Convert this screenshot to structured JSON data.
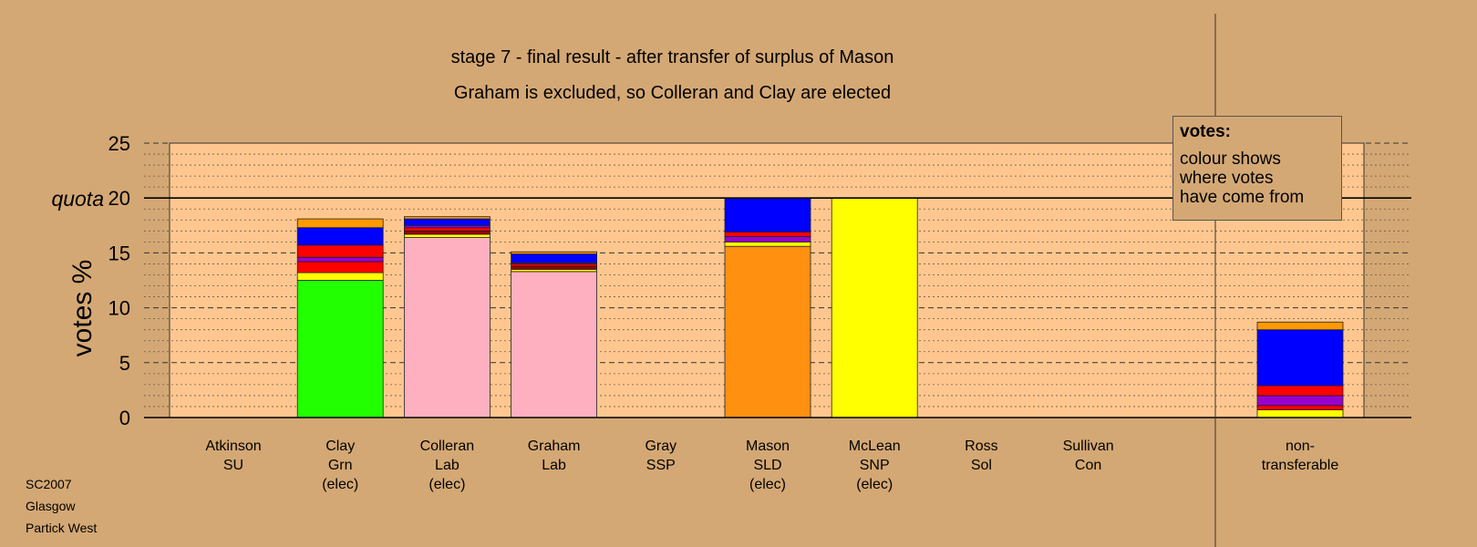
{
  "chart_data": {
    "type": "bar",
    "stacked": true,
    "title": "stage 7 - final result - after transfer of surplus of Mason",
    "subtitle": "Graham is excluded, so Colleran and Clay are elected",
    "ylabel": "votes %",
    "ylim": [
      0,
      25
    ],
    "yticks": [
      0,
      5,
      10,
      15,
      20,
      25
    ],
    "quota_label": "quota",
    "quota": 20,
    "grid": true,
    "categories": [
      {
        "lines": [
          "Atkinson",
          "SU"
        ],
        "segments": []
      },
      {
        "lines": [
          "Clay",
          "Grn",
          "(elec)"
        ],
        "segments": [
          {
            "color": "#22ff00",
            "value": 12.5
          },
          {
            "color": "#ffff00",
            "value": 0.7
          },
          {
            "color": "#ff0000",
            "value": 1.0
          },
          {
            "color": "#9900cc",
            "value": 0.4
          },
          {
            "color": "#ff0000",
            "value": 1.1
          },
          {
            "color": "#0000ff",
            "value": 1.6
          },
          {
            "color": "#ff9900",
            "value": 0.8
          }
        ]
      },
      {
        "lines": [
          "Colleran",
          "Lab",
          "(elec)"
        ],
        "segments": [
          {
            "color": "#ffb0c0",
            "value": 16.4
          },
          {
            "color": "#ffff00",
            "value": 0.3
          },
          {
            "color": "#990000",
            "value": 0.3
          },
          {
            "color": "#ff0000",
            "value": 0.3
          },
          {
            "color": "#9900cc",
            "value": 0.2
          },
          {
            "color": "#0000ff",
            "value": 0.6
          },
          {
            "color": "#ff9900",
            "value": 0.2
          }
        ]
      },
      {
        "lines": [
          "Graham",
          "Lab"
        ],
        "segments": [
          {
            "color": "#ffb0c0",
            "value": 13.3
          },
          {
            "color": "#ffff00",
            "value": 0.2
          },
          {
            "color": "#990000",
            "value": 0.3
          },
          {
            "color": "#ff0000",
            "value": 0.2
          },
          {
            "color": "#9900cc",
            "value": 0.1
          },
          {
            "color": "#0000ff",
            "value": 0.8
          },
          {
            "color": "#ff9900",
            "value": 0.2
          }
        ]
      },
      {
        "lines": [
          "Gray",
          "SSP"
        ],
        "segments": []
      },
      {
        "lines": [
          "Mason",
          "SLD",
          "(elec)"
        ],
        "segments": [
          {
            "color": "#ff9010",
            "value": 15.6
          },
          {
            "color": "#ffff00",
            "value": 0.4
          },
          {
            "color": "#9900cc",
            "value": 0.5
          },
          {
            "color": "#ff0000",
            "value": 0.4
          },
          {
            "color": "#0000ff",
            "value": 3.1
          }
        ]
      },
      {
        "lines": [
          "McLean",
          "SNP",
          "(elec)"
        ],
        "segments": [
          {
            "color": "#ffff00",
            "value": 20.0
          }
        ]
      },
      {
        "lines": [
          "Ross",
          "Sol"
        ],
        "segments": []
      },
      {
        "lines": [
          "Sullivan",
          "Con"
        ],
        "segments": []
      },
      {
        "lines": [
          "non-",
          "transferable"
        ],
        "segments": [
          {
            "color": "#ffff00",
            "value": 0.7
          },
          {
            "color": "#ff0000",
            "value": 0.4
          },
          {
            "color": "#9900cc",
            "value": 0.9
          },
          {
            "color": "#ff0000",
            "value": 0.9
          },
          {
            "color": "#0000ff",
            "value": 5.1
          },
          {
            "color": "#ff9900",
            "value": 0.7
          }
        ]
      }
    ],
    "legend": {
      "title": "votes:",
      "lines": [
        "colour shows",
        "where votes",
        "have come from"
      ]
    },
    "colors": {
      "page_background": "#d4a874",
      "plot_background": "#ffc78f"
    }
  },
  "footer": {
    "line1": "SC2007",
    "line2": "Glasgow",
    "line3": "Partick West"
  }
}
